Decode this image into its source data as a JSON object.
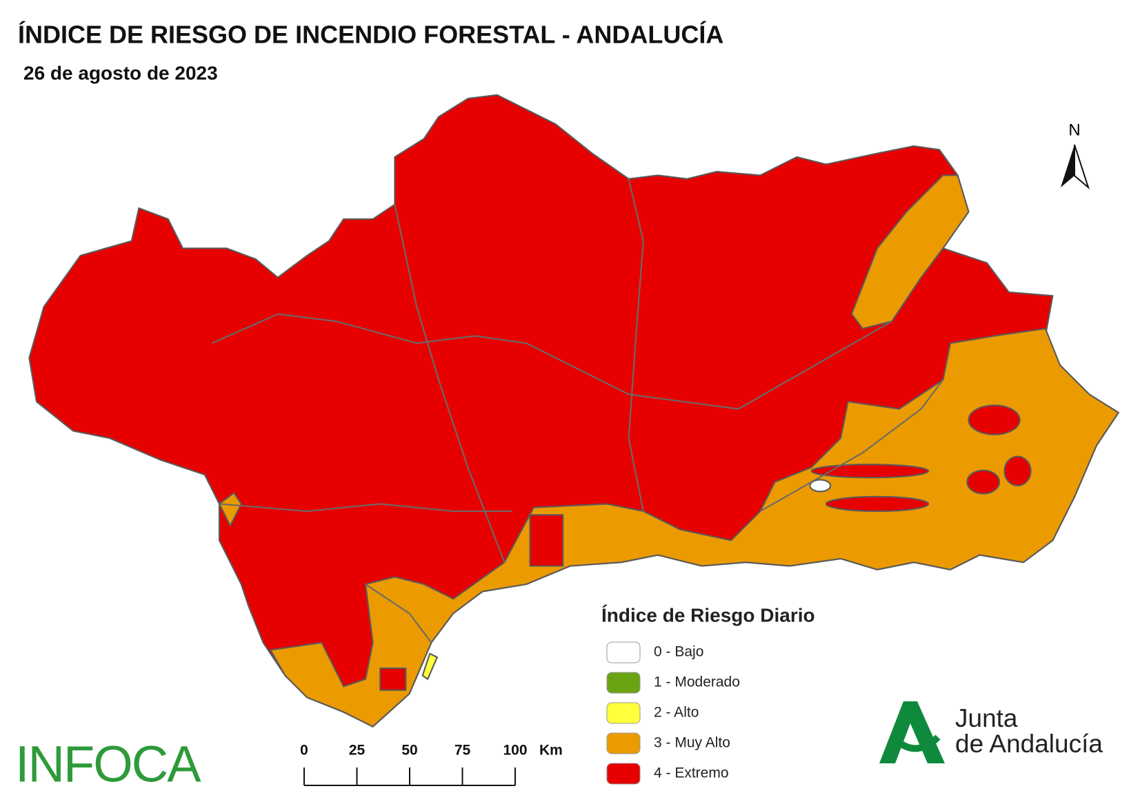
{
  "header": {
    "title": "ÍNDICE DE RIESGO DE INCENDIO FORESTAL - ANDALUCÍA",
    "date": "26 de agosto de 2023"
  },
  "map": {
    "north_label": "N"
  },
  "legend": {
    "title": "Índice de Riesgo Diario",
    "items": [
      {
        "label": "0 - Bajo",
        "color": "#ffffff"
      },
      {
        "label": "1 - Moderado",
        "color": "#6aa312"
      },
      {
        "label": "2 - Alto",
        "color": "#ffff3c"
      },
      {
        "label": "3 - Muy Alto",
        "color": "#eb9b00"
      },
      {
        "label": "4 - Extremo",
        "color": "#e60000"
      }
    ]
  },
  "scale_bar": {
    "ticks": [
      0,
      25,
      50,
      75,
      100
    ],
    "unit": "Km"
  },
  "logos": {
    "infoca": "INFOCA",
    "junta": [
      "Junta",
      "de Andalucía"
    ]
  }
}
